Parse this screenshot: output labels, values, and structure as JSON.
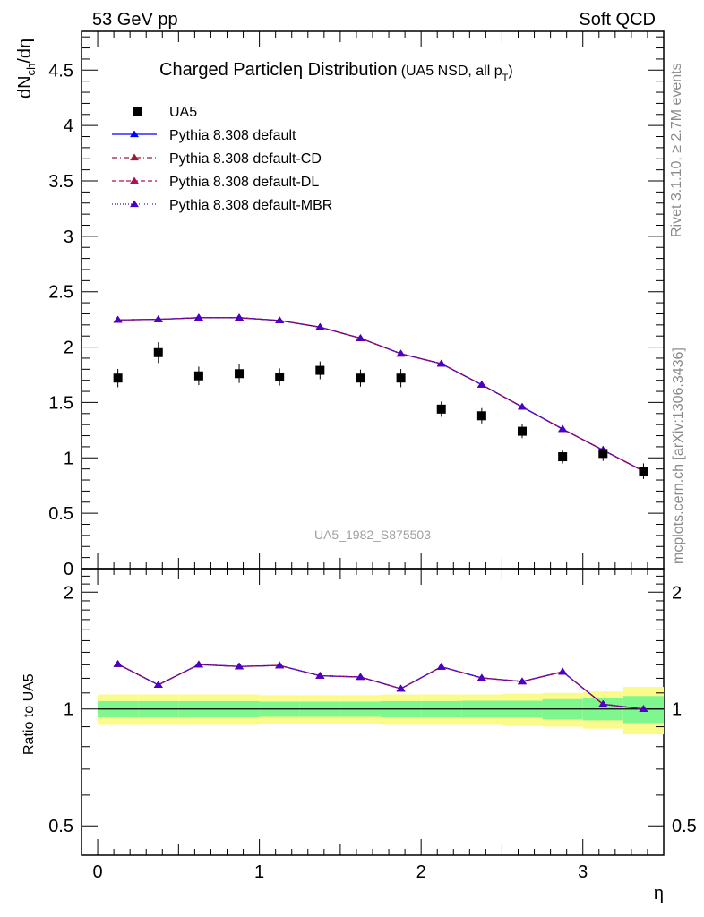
{
  "header": {
    "left": "53 GeV pp",
    "right": "Soft QCD"
  },
  "side": {
    "rivet": "Rivet 3.1.10, ≥ 2.7M events",
    "mcplots": "mcplots.cern.ch [arXiv:1306.3436]"
  },
  "chart_data": {
    "type": "scatter",
    "title": "Charged Particleη Distribution",
    "title_sub": "(UA5 NSD, all p",
    "title_sub_index": "T",
    "title_sub_end": ")",
    "analysis_id": "UA5_1982_S875503",
    "xlabel": "η",
    "ylabel": "dN",
    "ylabel_sub": "ch",
    "ylabel_end": "/dη",
    "ratio_ylabel": "Ratio to UA5",
    "xlim": [
      -0.1,
      3.5
    ],
    "ylim": [
      0,
      4.85
    ],
    "ratio_ylim": [
      0.42,
      2.3
    ],
    "x_ticks": [
      0,
      1,
      2,
      3
    ],
    "x_tick_labels": [
      "0",
      "1",
      "2",
      "3"
    ],
    "y_ticks": [
      0,
      0.5,
      1,
      1.5,
      2,
      2.5,
      3,
      3.5,
      4,
      4.5
    ],
    "y_tick_labels": [
      "0",
      "0.5",
      "1",
      "1.5",
      "2",
      "2.5",
      "3",
      "3.5",
      "4",
      "4.5"
    ],
    "ratio_ticks": [
      0.5,
      1,
      2
    ],
    "ratio_tick_labels": [
      "0.5",
      "1",
      "2"
    ],
    "legend_position": "top-left",
    "x": [
      0.125,
      0.375,
      0.625,
      0.875,
      1.125,
      1.375,
      1.625,
      1.875,
      2.125,
      2.375,
      2.625,
      2.875,
      3.125,
      3.375
    ],
    "data": {
      "name": "UA5",
      "values": [
        1.72,
        1.95,
        1.74,
        1.76,
        1.73,
        1.79,
        1.72,
        1.72,
        1.44,
        1.38,
        1.24,
        1.01,
        1.04,
        0.88
      ],
      "band_inner": [
        0.048,
        0.048,
        0.048,
        0.048,
        0.045,
        0.045,
        0.045,
        0.048,
        0.048,
        0.05,
        0.05,
        0.06,
        0.065,
        0.08
      ],
      "band_outer": [
        0.09,
        0.09,
        0.09,
        0.09,
        0.085,
        0.085,
        0.085,
        0.09,
        0.09,
        0.09,
        0.095,
        0.1,
        0.11,
        0.14
      ]
    },
    "series": [
      {
        "name": "Pythia 8.308 default",
        "values": [
          2.245,
          2.25,
          2.265,
          2.265,
          2.24,
          2.18,
          2.08,
          1.94,
          1.85,
          1.66,
          1.46,
          1.26,
          1.07,
          0.88
        ],
        "color": "#0000ff",
        "dash": ""
      },
      {
        "name": "Pythia 8.308 default-CD",
        "values": [
          2.245,
          2.25,
          2.265,
          2.265,
          2.24,
          2.18,
          2.08,
          1.94,
          1.85,
          1.66,
          1.46,
          1.26,
          1.07,
          0.88
        ],
        "color": "#9b1a3c",
        "dash": "6,3,1,3"
      },
      {
        "name": "Pythia 8.308 default-DL",
        "values": [
          2.245,
          2.25,
          2.265,
          2.265,
          2.24,
          2.18,
          2.08,
          1.94,
          1.85,
          1.66,
          1.46,
          1.26,
          1.07,
          0.88
        ],
        "color": "#b0105a",
        "dash": "5,3"
      },
      {
        "name": "Pythia 8.308 default-MBR",
        "values": [
          2.245,
          2.25,
          2.265,
          2.265,
          2.24,
          2.18,
          2.08,
          1.94,
          1.85,
          1.66,
          1.46,
          1.26,
          1.07,
          0.88
        ],
        "color": "#4b00c8",
        "dash": "1,2"
      }
    ],
    "colors": {
      "band_inner": "#7ff78f",
      "band_outer": "#fbfb8c",
      "data_marker": "#000000"
    }
  }
}
